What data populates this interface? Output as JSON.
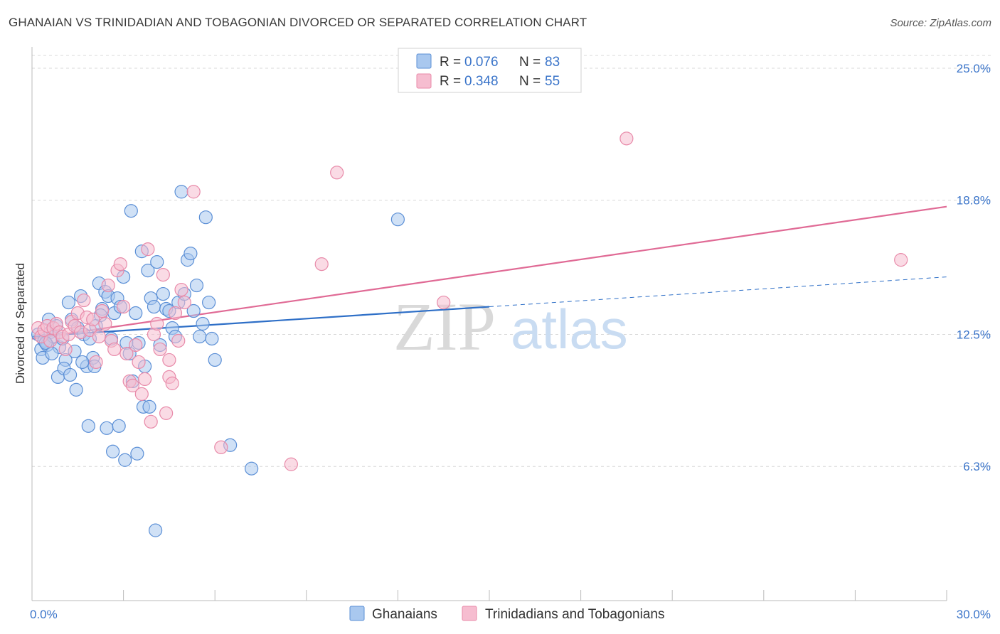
{
  "title": "GHANAIAN VS TRINIDADIAN AND TOBAGONIAN DIVORCED OR SEPARATED CORRELATION CHART",
  "source": "Source: ZipAtlas.com",
  "watermark": {
    "zip": "ZIP",
    "atlas": "atlas"
  },
  "colors": {
    "blue_fill": "#a9c8ef",
    "blue_stroke": "#5b8fd6",
    "blue_line": "#2e6fc7",
    "pink_fill": "#f6bdd0",
    "pink_stroke": "#e88aa9",
    "pink_line": "#e06a95",
    "grid": "#d8d8d8",
    "accent_text": "#3a74c9"
  },
  "legend_top": {
    "rows": [
      {
        "r_label": "R = ",
        "r_value": "0.076",
        "n_label": "N = ",
        "n_value": "83",
        "series": "blue"
      },
      {
        "r_label": "R = ",
        "r_value": "0.348",
        "n_label": "N = ",
        "n_value": "55",
        "series": "pink"
      }
    ]
  },
  "legend_bottom": [
    "Ghanaians",
    "Trinidadians and Tobagonians"
  ],
  "chart_data": {
    "type": "scatter",
    "xlabel": "",
    "ylabel": "Divorced or Separated",
    "xlim": [
      0,
      30
    ],
    "ylim": [
      0,
      25.6
    ],
    "x_tick_labels": [
      {
        "value": 0,
        "label": "0.0%"
      },
      {
        "value": 30,
        "label": "30.0%"
      }
    ],
    "y_tick_labels": [
      {
        "value": 25.0,
        "label": "25.0%"
      },
      {
        "value": 18.8,
        "label": "18.8%"
      },
      {
        "value": 12.5,
        "label": "12.5%"
      },
      {
        "value": 6.3,
        "label": "6.3%"
      }
    ],
    "grid": true,
    "legend_placement": "top-center",
    "series": [
      {
        "name": "Ghanaians",
        "color": "blue",
        "trend": {
          "x0": 0.0,
          "y0": 12.4,
          "x1": 15.0,
          "y1": 13.8,
          "dash_x1": 30.0,
          "dash_y1": 15.2
        },
        "points": [
          [
            0.2,
            12.5
          ],
          [
            0.3,
            11.8
          ],
          [
            0.4,
            12.2
          ],
          [
            0.5,
            12.0
          ],
          [
            0.6,
            12.6
          ],
          [
            0.7,
            12.4
          ],
          [
            0.8,
            12.9
          ],
          [
            0.9,
            11.9
          ],
          [
            1.0,
            12.3
          ],
          [
            1.1,
            11.3
          ],
          [
            1.2,
            14.0
          ],
          [
            1.3,
            13.2
          ],
          [
            1.4,
            11.7
          ],
          [
            1.5,
            12.8
          ],
          [
            1.6,
            14.3
          ],
          [
            1.7,
            12.5
          ],
          [
            1.8,
            11.0
          ],
          [
            1.9,
            12.3
          ],
          [
            2.0,
            11.4
          ],
          [
            2.1,
            12.9
          ],
          [
            2.2,
            14.9
          ],
          [
            2.3,
            13.7
          ],
          [
            2.4,
            14.5
          ],
          [
            2.5,
            14.3
          ],
          [
            2.6,
            12.3
          ],
          [
            2.7,
            13.5
          ],
          [
            2.8,
            14.2
          ],
          [
            2.9,
            13.8
          ],
          [
            3.0,
            15.2
          ],
          [
            3.1,
            12.1
          ],
          [
            3.2,
            11.6
          ],
          [
            3.3,
            10.3
          ],
          [
            3.4,
            13.5
          ],
          [
            3.5,
            12.1
          ],
          [
            3.6,
            16.4
          ],
          [
            3.7,
            11.0
          ],
          [
            3.8,
            15.5
          ],
          [
            3.9,
            14.2
          ],
          [
            4.0,
            13.8
          ],
          [
            4.1,
            15.9
          ],
          [
            4.2,
            12.0
          ],
          [
            4.3,
            14.4
          ],
          [
            4.4,
            13.7
          ],
          [
            4.5,
            13.6
          ],
          [
            4.6,
            12.8
          ],
          [
            4.7,
            12.4
          ],
          [
            4.8,
            14.0
          ],
          [
            4.9,
            19.2
          ],
          [
            5.0,
            14.4
          ],
          [
            5.1,
            16.0
          ],
          [
            5.2,
            16.3
          ],
          [
            5.3,
            13.6
          ],
          [
            5.4,
            14.8
          ],
          [
            5.5,
            12.4
          ],
          [
            5.6,
            13.0
          ],
          [
            5.7,
            18.0
          ],
          [
            5.8,
            14.0
          ],
          [
            5.9,
            12.3
          ],
          [
            6.0,
            11.3
          ],
          [
            0.35,
            11.4
          ],
          [
            0.45,
            12.1
          ],
          [
            0.55,
            13.2
          ],
          [
            0.65,
            11.6
          ],
          [
            0.85,
            10.5
          ],
          [
            1.05,
            10.9
          ],
          [
            1.25,
            10.6
          ],
          [
            1.45,
            9.9
          ],
          [
            1.65,
            11.2
          ],
          [
            1.85,
            8.2
          ],
          [
            2.05,
            11.0
          ],
          [
            2.25,
            13.4
          ],
          [
            2.45,
            8.1
          ],
          [
            2.65,
            7.0
          ],
          [
            2.85,
            8.2
          ],
          [
            3.05,
            6.6
          ],
          [
            3.25,
            18.3
          ],
          [
            3.45,
            6.9
          ],
          [
            3.65,
            9.1
          ],
          [
            3.85,
            9.1
          ],
          [
            4.05,
            3.3
          ],
          [
            6.5,
            7.3
          ],
          [
            7.2,
            6.2
          ],
          [
            12.0,
            17.9
          ]
        ]
      },
      {
        "name": "Trinidadians and Tobagonians",
        "color": "pink",
        "trend": {
          "x0": 0.0,
          "y0": 12.3,
          "x1": 30.0,
          "y1": 18.5
        },
        "points": [
          [
            0.2,
            12.8
          ],
          [
            0.3,
            12.4
          ],
          [
            0.4,
            12.7
          ],
          [
            0.5,
            12.9
          ],
          [
            0.6,
            12.2
          ],
          [
            0.7,
            12.8
          ],
          [
            0.8,
            13.0
          ],
          [
            0.9,
            12.6
          ],
          [
            1.0,
            12.4
          ],
          [
            1.1,
            11.8
          ],
          [
            1.2,
            12.5
          ],
          [
            1.3,
            13.1
          ],
          [
            1.4,
            12.9
          ],
          [
            1.5,
            13.5
          ],
          [
            1.6,
            12.6
          ],
          [
            1.7,
            14.1
          ],
          [
            1.8,
            13.3
          ],
          [
            1.9,
            12.7
          ],
          [
            2.0,
            13.2
          ],
          [
            2.1,
            11.2
          ],
          [
            2.2,
            12.4
          ],
          [
            2.3,
            13.6
          ],
          [
            2.4,
            13.0
          ],
          [
            2.5,
            14.8
          ],
          [
            2.6,
            12.2
          ],
          [
            2.7,
            11.8
          ],
          [
            2.8,
            15.5
          ],
          [
            2.9,
            15.8
          ],
          [
            3.0,
            13.8
          ],
          [
            3.1,
            11.6
          ],
          [
            3.2,
            10.3
          ],
          [
            3.3,
            10.1
          ],
          [
            3.4,
            12.0
          ],
          [
            3.5,
            11.2
          ],
          [
            3.6,
            9.7
          ],
          [
            3.7,
            10.4
          ],
          [
            3.8,
            16.5
          ],
          [
            3.9,
            8.4
          ],
          [
            4.0,
            12.5
          ],
          [
            4.1,
            13.0
          ],
          [
            4.2,
            11.8
          ],
          [
            4.3,
            15.3
          ],
          [
            4.4,
            8.8
          ],
          [
            4.5,
            10.5
          ],
          [
            4.6,
            10.2
          ],
          [
            4.7,
            13.5
          ],
          [
            4.8,
            12.2
          ],
          [
            4.9,
            14.6
          ],
          [
            5.0,
            14.0
          ],
          [
            5.3,
            19.2
          ],
          [
            6.2,
            7.2
          ],
          [
            8.5,
            6.4
          ],
          [
            10.0,
            20.1
          ],
          [
            13.5,
            14.0
          ],
          [
            19.5,
            21.7
          ]
        ]
      }
    ],
    "extra_points_pink": [
      [
        28.5,
        16.0
      ],
      [
        9.5,
        15.8
      ],
      [
        4.5,
        11.3
      ]
    ]
  }
}
